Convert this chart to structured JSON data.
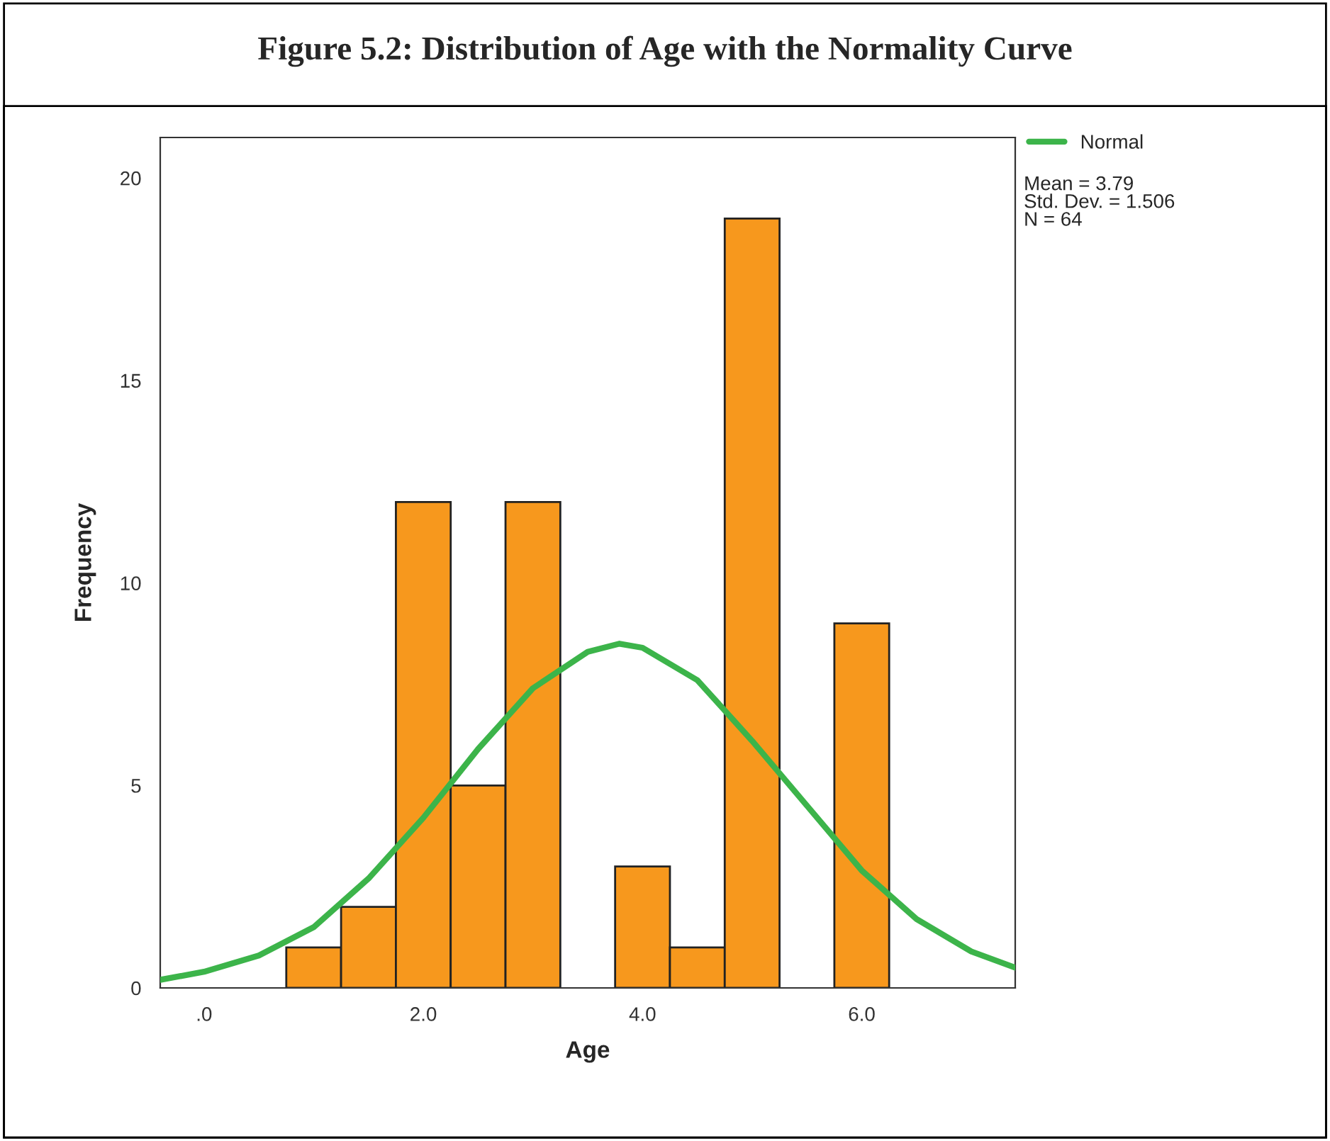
{
  "chart_data": {
    "type": "histogram",
    "title": "Figure 5.2: Distribution of Age with the Normality Curve",
    "xlabel": "Age",
    "ylabel": "Frequency",
    "bins": [
      0.75,
      1.25,
      1.75,
      2.25,
      2.75,
      3.25,
      3.75,
      4.25,
      4.75,
      5.25,
      5.75,
      6.25
    ],
    "series": [
      {
        "type": "histogram",
        "color": "#f7981d",
        "values": [
          1,
          2,
          12,
          5,
          12,
          0,
          3,
          1,
          19,
          0,
          9
        ]
      },
      {
        "type": "line",
        "name": "Normal",
        "color": "#3cb44a",
        "x": [
          -0.4,
          0,
          0.5,
          1,
          1.5,
          2,
          2.5,
          3,
          3.5,
          3.79,
          4,
          4.5,
          5,
          5.5,
          6,
          6.5,
          7,
          7.4
        ],
        "values": [
          0.2,
          0.4,
          0.8,
          1.5,
          2.7,
          4.2,
          5.9,
          7.4,
          8.3,
          8.5,
          8.4,
          7.6,
          6.1,
          4.5,
          2.9,
          1.7,
          0.9,
          0.5
        ]
      }
    ],
    "xlim": [
      -0.4,
      7.4
    ],
    "ylim": [
      0,
      21
    ],
    "xticks": [
      {
        "value": 0,
        "label": ".0"
      },
      {
        "value": 2,
        "label": "2.0"
      },
      {
        "value": 4,
        "label": "4.0"
      },
      {
        "value": 6,
        "label": "6.0"
      }
    ],
    "yticks": [
      0,
      5,
      10,
      15,
      20
    ],
    "grid": false,
    "legend": "top right",
    "annotations": [
      "Mean = 3.79",
      "Std. Dev. = 1.506",
      "N = 64"
    ]
  }
}
